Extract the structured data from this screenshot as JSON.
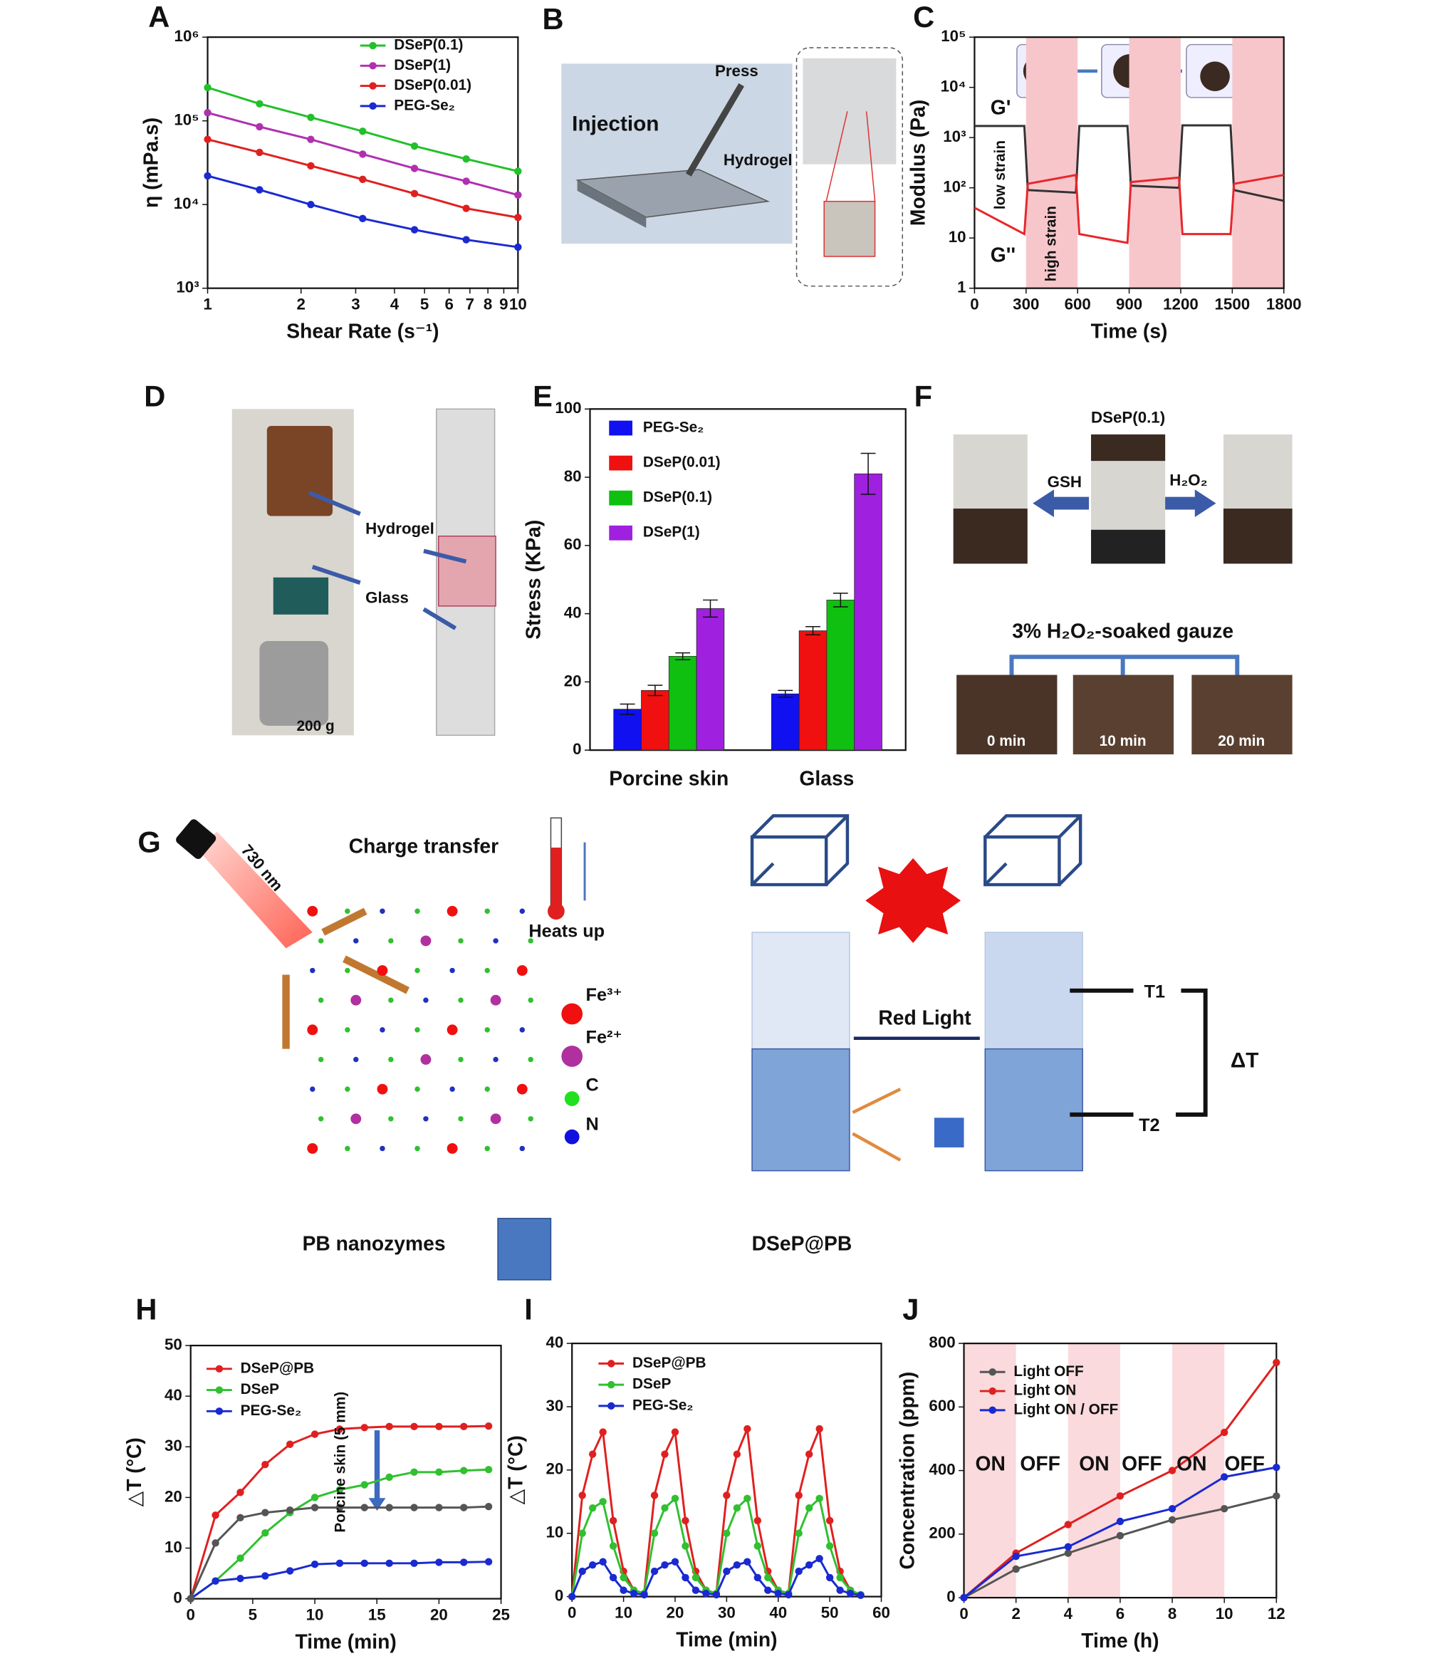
{
  "chart_data": [
    {
      "type": "line",
      "label": "A",
      "xlog": true,
      "ylog": true,
      "x": [
        1,
        1.47,
        2.15,
        3.16,
        4.64,
        6.81,
        10
      ],
      "series": [
        {
          "name": "DSeP(0.1)",
          "color": "#22c02a",
          "values": [
            250000,
            160000,
            110000,
            75000,
            50000,
            35000,
            25000
          ]
        },
        {
          "name": "DSeP(1)",
          "color": "#b030b0",
          "values": [
            125000,
            85000,
            60000,
            40000,
            27000,
            19000,
            13000
          ]
        },
        {
          "name": "DSeP(0.01)",
          "color": "#e02020",
          "values": [
            60000,
            42000,
            29000,
            20000,
            13500,
            9000,
            7000
          ]
        },
        {
          "name": "PEG-Se₂",
          "color": "#1a2ad0",
          "values": [
            22000,
            15000,
            10000,
            6800,
            5000,
            3800,
            3100
          ]
        }
      ],
      "xlim": [
        1,
        10
      ],
      "ylim": [
        1000,
        1000000
      ],
      "xticks": [
        1,
        2,
        3,
        4,
        5,
        6,
        7,
        8,
        9,
        10
      ],
      "yticks": [
        {
          "value": 1000,
          "label": "10³"
        },
        {
          "value": 10000,
          "label": "10⁴"
        },
        {
          "value": 100000,
          "label": "10⁵"
        },
        {
          "value": 1000000,
          "label": "10⁶"
        }
      ],
      "x_label": "Shear Rate (s⁻¹)",
      "y_label": "η (mPa.s)"
    },
    {
      "type": "line",
      "label": "C",
      "ylog": true,
      "x": [
        0,
        290,
        310,
        590,
        610,
        890,
        910,
        1190,
        1210,
        1490,
        1510,
        1800
      ],
      "series": [
        {
          "name": "G'",
          "color": "#333333",
          "values": [
            1700,
            1700,
            90,
            80,
            1700,
            1700,
            110,
            100,
            1750,
            1750,
            90,
            55
          ]
        },
        {
          "name": "G''",
          "color": "#e8262a",
          "values": [
            40,
            12,
            120,
            180,
            12,
            8,
            130,
            160,
            12,
            12,
            120,
            180
          ]
        }
      ],
      "bands": [
        [
          300,
          600
        ],
        [
          900,
          1200
        ],
        [
          1500,
          1800
        ]
      ],
      "band_color": "#f7c6cb",
      "annotations": [
        "low strain",
        "high strain"
      ],
      "xlim": [
        0,
        1800
      ],
      "ylim": [
        1,
        100000
      ],
      "xticks": [
        0,
        300,
        600,
        900,
        1200,
        1500,
        1800
      ],
      "yticks": [
        1,
        10,
        {
          "value": 100,
          "label": "10²"
        },
        {
          "value": 1000,
          "label": "10³"
        },
        {
          "value": 10000,
          "label": "10⁴"
        },
        {
          "value": 100000,
          "label": "10⁵"
        }
      ],
      "x_label": "Time (s)",
      "y_label": "Modulus (Pa)"
    },
    {
      "type": "bar",
      "label": "E",
      "categories": [
        "Porcine skin",
        "Glass"
      ],
      "series": [
        {
          "name": "PEG-Se₂",
          "color": "#1010f0",
          "values": [
            12,
            16.5
          ],
          "errors": [
            1.5,
            1
          ]
        },
        {
          "name": "DSeP(0.01)",
          "color": "#f01010",
          "values": [
            17.5,
            35
          ],
          "errors": [
            1.5,
            1.2
          ]
        },
        {
          "name": "DSeP(0.1)",
          "color": "#10c010",
          "values": [
            27.5,
            44
          ],
          "errors": [
            1,
            2
          ]
        },
        {
          "name": "DSeP(1)",
          "color": "#a020e0",
          "values": [
            41.5,
            81
          ],
          "errors": [
            2.5,
            6
          ]
        }
      ],
      "ylim": [
        0,
        100
      ],
      "yticks": [
        0,
        20,
        40,
        60,
        80,
        100
      ],
      "y_label": "Stress (KPa)"
    },
    {
      "type": "line",
      "label": "H",
      "x": [
        0,
        2,
        4,
        6,
        8,
        10,
        12,
        14,
        16,
        18,
        20,
        22,
        24
      ],
      "series": [
        {
          "name": "DSeP@PB",
          "color": "#e02020",
          "values": [
            0,
            16.5,
            21,
            26.5,
            30.5,
            32.5,
            33.5,
            33.8,
            34,
            34,
            34,
            34,
            34.1
          ]
        },
        {
          "name": "DSeP",
          "color": "#30c030",
          "values": [
            0,
            3.5,
            8,
            13,
            17,
            20,
            21.5,
            22.5,
            24,
            25,
            25,
            25.3,
            25.5
          ]
        },
        {
          "name": "PEG-Se₂",
          "color": "#1a2ad0",
          "values": [
            0,
            3.5,
            4,
            4.5,
            5.5,
            6.8,
            7,
            7,
            7,
            7,
            7.2,
            7.2,
            7.3
          ]
        },
        {
          "color": "#555555",
          "values": [
            0,
            11,
            16,
            17,
            17.5,
            18,
            18,
            18,
            18,
            18,
            18,
            18,
            18.2
          ]
        }
      ],
      "annotations": [
        "Porcine skin (5 mm)"
      ],
      "xlim": [
        0,
        25
      ],
      "ylim": [
        0,
        50
      ],
      "xticks": [
        0,
        5,
        10,
        15,
        20,
        25
      ],
      "yticks": [
        0,
        10,
        20,
        30,
        40,
        50
      ],
      "x_label": "Time (min)",
      "y_label": "△T (°C)"
    },
    {
      "type": "line",
      "label": "I",
      "x": [
        0,
        2,
        4,
        6,
        8,
        10,
        12,
        14,
        16,
        18,
        20,
        22,
        24,
        26,
        28,
        30,
        32,
        34,
        36,
        38,
        40,
        42,
        44,
        46,
        48,
        50,
        52,
        54,
        56
      ],
      "series": [
        {
          "name": "DSeP@PB",
          "color": "#e02020",
          "values": [
            0,
            16,
            22.5,
            26,
            12,
            4,
            1,
            0.5,
            16,
            22.5,
            26,
            12,
            4,
            1,
            0.5,
            16,
            22.5,
            26.5,
            12,
            4,
            1,
            0.5,
            16,
            22.5,
            26.5,
            12,
            4,
            1,
            0.3
          ]
        },
        {
          "name": "DSeP",
          "color": "#30c030",
          "values": [
            0,
            10,
            14,
            15,
            8,
            3,
            1,
            0.5,
            10,
            14,
            15.5,
            8,
            3,
            1,
            0.5,
            10,
            14,
            15.5,
            8,
            3,
            1,
            0.5,
            10,
            14,
            15.5,
            8,
            3,
            1,
            0.3
          ]
        },
        {
          "name": "PEG-Se₂",
          "color": "#1a2ad0",
          "values": [
            0,
            4,
            5,
            5.5,
            3,
            1,
            0.5,
            0.3,
            4,
            5,
            5.5,
            3,
            1,
            0.5,
            0.3,
            4,
            5,
            5.5,
            3,
            1,
            0.5,
            0.3,
            4,
            5,
            6,
            3,
            1,
            0.5,
            0.2
          ]
        }
      ],
      "xlim": [
        0,
        60
      ],
      "ylim": [
        0,
        40
      ],
      "xticks": [
        0,
        10,
        20,
        30,
        40,
        50,
        60
      ],
      "yticks": [
        0,
        10,
        20,
        30,
        40
      ],
      "x_label": "Time (min)",
      "y_label": "△T (°C)"
    },
    {
      "type": "line",
      "label": "J",
      "x": [
        0,
        2,
        4,
        6,
        8,
        10,
        12
      ],
      "series": [
        {
          "name": "Light OFF",
          "color": "#555555",
          "values": [
            0,
            90,
            140,
            195,
            245,
            280,
            320
          ]
        },
        {
          "name": "Light ON",
          "color": "#e02020",
          "values": [
            0,
            140,
            230,
            320,
            400,
            520,
            740
          ]
        },
        {
          "name": "Light ON / OFF",
          "color": "#1a2ad0",
          "values": [
            0,
            130,
            160,
            240,
            280,
            380,
            410
          ]
        }
      ],
      "bands": [
        [
          0,
          2
        ],
        [
          4,
          6
        ],
        [
          8,
          10
        ]
      ],
      "band_color": "#fadadd",
      "annotations": [
        "ON",
        "OFF",
        "ON",
        "OFF",
        "ON",
        "OFF"
      ],
      "xlim": [
        0,
        12
      ],
      "ylim": [
        0,
        800
      ],
      "xticks": [
        0,
        2,
        4,
        6,
        8,
        10,
        12
      ],
      "yticks": [
        0,
        200,
        400,
        600,
        800
      ],
      "x_label": "Time (h)",
      "y_label": "Concentration (ppm)"
    }
  ],
  "panel_b": {
    "label": "B",
    "press": "Press",
    "injection": "Injection",
    "hydrogel": "Hydrogel"
  },
  "panel_d": {
    "label": "D",
    "hydrogel": "Hydrogel",
    "glass": "Glass",
    "weight": "200 g"
  },
  "panel_f": {
    "label": "F",
    "sample": "DSeP(0.1)",
    "left": "GSH",
    "right": "H₂O₂",
    "gauze": "3% H₂O₂-soaked gauze",
    "times": [
      "0 min",
      "10 min",
      "20 min"
    ]
  },
  "panel_g": {
    "label": "G",
    "wavelength": "730 nm",
    "charge": "Charge transfer",
    "heat": "Heats up",
    "legend": [
      "Fe³⁺",
      "Fe²⁺",
      "C",
      "N"
    ],
    "light": "Red Light",
    "t1": "T1",
    "t2": "T2",
    "delta": "ΔT",
    "pb": "PB nanozymes",
    "dsep": "DSeP@PB"
  }
}
